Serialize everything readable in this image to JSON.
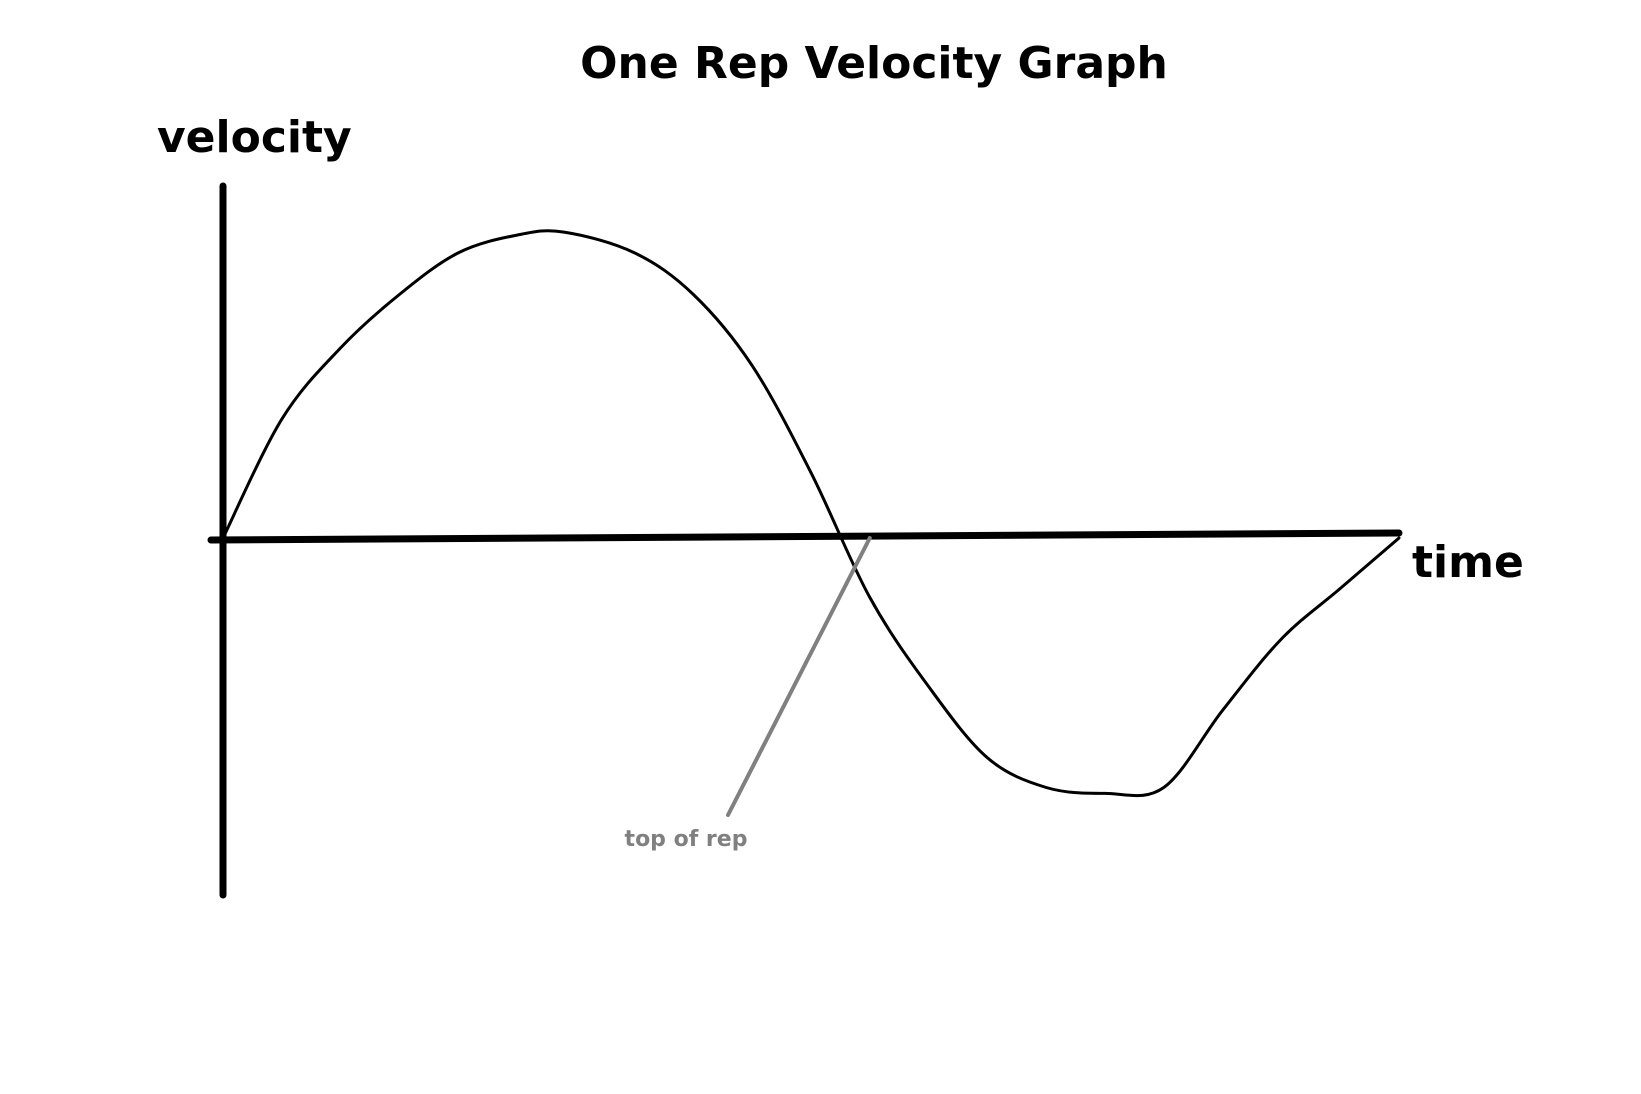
{
  "chart_data": {
    "type": "line",
    "title": "One Rep Velocity Graph",
    "ylabel": "velocity",
    "xlabel": "time",
    "grid": false,
    "legend": "none",
    "xlim": [
      0,
      1
    ],
    "ylim": [
      -1.16,
      1.16
    ],
    "series": [
      {
        "x": [
          0,
          0.05,
          0.1,
          0.15,
          0.2,
          0.25,
          0.29,
          0.35,
          0.4,
          0.45,
          0.5,
          0.55,
          0.6,
          0.65,
          0.7,
          0.75,
          0.8,
          0.85,
          0.9,
          0.95,
          1
        ],
        "values": [
          0,
          0.4,
          0.64,
          0.82,
          0.96,
          1.02,
          1.03,
          0.96,
          0.82,
          0.58,
          0.22,
          -0.2,
          -0.5,
          -0.74,
          -0.84,
          -0.86,
          -0.84,
          -0.58,
          -0.34,
          -0.17,
          0
        ]
      }
    ],
    "annotations": [
      {
        "text": "top of rep",
        "x": 0.55,
        "y": 0
      }
    ],
    "colors": {
      "axis": "#000000",
      "line": "#000000",
      "annotation": "#808080"
    }
  }
}
